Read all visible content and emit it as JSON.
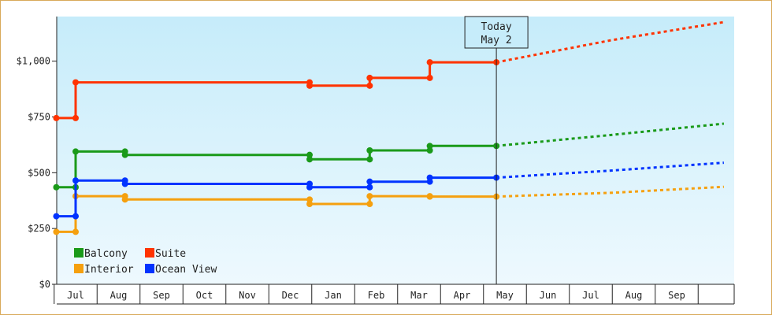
{
  "chart_data": {
    "type": "line",
    "y_axis": {
      "ylim": [
        0,
        1200
      ],
      "ticks": [
        0,
        250,
        500,
        750,
        1000
      ],
      "tick_labels": [
        "$0",
        "$250",
        "$500",
        "$750",
        "$1,000"
      ]
    },
    "x_axis": {
      "months": [
        "Jul",
        "Aug",
        "Sep",
        "Oct",
        "Nov",
        "Dec",
        "Jan",
        "Feb",
        "Mar",
        "Apr",
        "May",
        "Jun",
        "Jul",
        "Aug",
        "Sep"
      ]
    },
    "today_marker": {
      "line1": "Today",
      "line2": "May 2"
    },
    "series": [
      {
        "name": "Balcony",
        "color": "#1a9a1a",
        "history": [
          [
            -0.45,
            435
          ],
          [
            0.0,
            435
          ],
          [
            0.0,
            595
          ],
          [
            1.15,
            595
          ],
          [
            1.15,
            580
          ],
          [
            5.45,
            580
          ],
          [
            5.45,
            560
          ],
          [
            6.85,
            560
          ],
          [
            6.85,
            600
          ],
          [
            8.25,
            600
          ],
          [
            8.25,
            620
          ],
          [
            9.8,
            620
          ]
        ],
        "forecast": [
          [
            9.8,
            620
          ],
          [
            12.5,
            670
          ],
          [
            15.1,
            720
          ]
        ]
      },
      {
        "name": "Suite",
        "color": "#ff3300",
        "history": [
          [
            -0.45,
            745
          ],
          [
            0.0,
            745
          ],
          [
            0.0,
            905
          ],
          [
            5.45,
            905
          ],
          [
            5.45,
            890
          ],
          [
            6.85,
            890
          ],
          [
            6.85,
            925
          ],
          [
            8.25,
            925
          ],
          [
            8.25,
            995
          ],
          [
            9.8,
            995
          ]
        ],
        "forecast": [
          [
            9.8,
            995
          ],
          [
            12.5,
            1095
          ],
          [
            15.1,
            1175
          ]
        ]
      },
      {
        "name": "Interior",
        "color": "#f5a00f",
        "history": [
          [
            -0.45,
            235
          ],
          [
            0.0,
            235
          ],
          [
            0.0,
            395
          ],
          [
            1.15,
            395
          ],
          [
            1.15,
            380
          ],
          [
            5.45,
            380
          ],
          [
            5.45,
            360
          ],
          [
            6.85,
            360
          ],
          [
            6.85,
            395
          ],
          [
            8.25,
            395
          ],
          [
            8.25,
            393
          ],
          [
            9.8,
            393
          ]
        ],
        "forecast": [
          [
            9.8,
            393
          ],
          [
            12.5,
            410
          ],
          [
            15.1,
            437
          ]
        ]
      },
      {
        "name": "Ocean View",
        "color": "#0033ff",
        "history": [
          [
            -0.45,
            305
          ],
          [
            0.0,
            305
          ],
          [
            0.0,
            465
          ],
          [
            1.15,
            465
          ],
          [
            1.15,
            450
          ],
          [
            5.45,
            450
          ],
          [
            5.45,
            435
          ],
          [
            6.85,
            435
          ],
          [
            6.85,
            460
          ],
          [
            8.25,
            460
          ],
          [
            8.25,
            478
          ],
          [
            9.8,
            478
          ]
        ],
        "forecast": [
          [
            9.8,
            478
          ],
          [
            12.5,
            510
          ],
          [
            15.1,
            545
          ]
        ]
      }
    ],
    "legend_order": [
      "Balcony",
      "Suite",
      "Interior",
      "Ocean View"
    ],
    "grid": false,
    "legend_position": "bottom-left"
  }
}
